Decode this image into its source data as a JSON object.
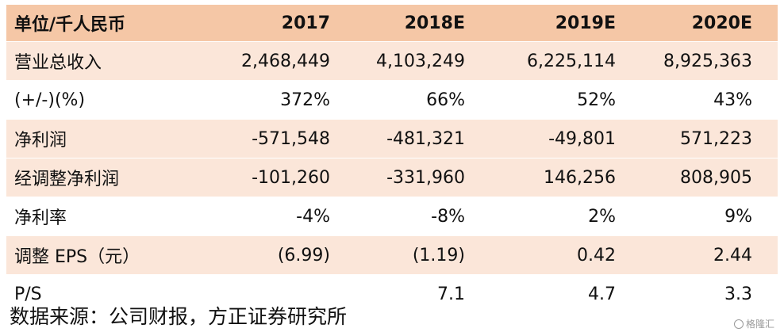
{
  "table": {
    "header": [
      "单位/千人民币",
      "2017",
      "2018E",
      "2019E",
      "2020E"
    ],
    "rows": [
      [
        "营业总收入",
        "2,468,449",
        "4,103,249",
        "6,225,114",
        "8,925,363"
      ],
      [
        "(+/-)(%)",
        "372%",
        "66%",
        "52%",
        "43%"
      ],
      [
        "净利润",
        "-571,548",
        "-481,321",
        "-49,801",
        "571,223"
      ],
      [
        "经调整净利润",
        "-101,260",
        "-331,960",
        "146,256",
        "808,905"
      ],
      [
        "净利率",
        "-4%",
        "-8%",
        "2%",
        "9%"
      ],
      [
        "调整 EPS（元）",
        "(6.99)",
        "(1.19)",
        "0.42",
        "2.44"
      ],
      [
        "P/S",
        "",
        "7.1",
        "4.7",
        "3.3"
      ]
    ]
  },
  "footer": {
    "source": "数据来源：公司财报，方正证券研究所"
  },
  "watermark": {
    "text": "格隆汇",
    "icon": "watermark-logo-icon"
  },
  "colors": {
    "header_bg": "#f5c7a6",
    "shade_bg": "#fbe6d9"
  }
}
